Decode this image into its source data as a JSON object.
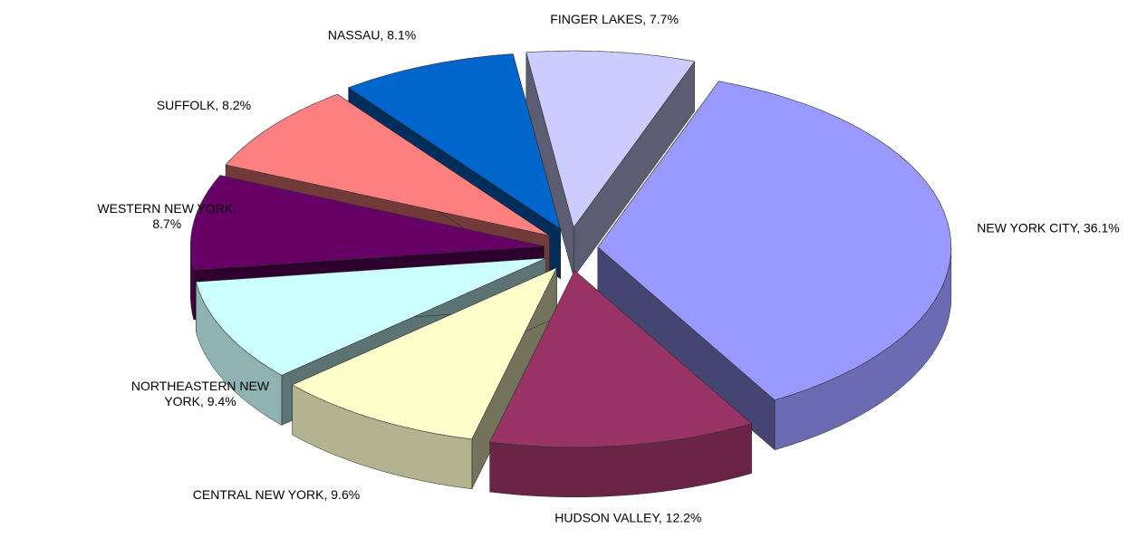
{
  "chart_data": {
    "type": "pie3d",
    "values": [
      36.1,
      12.2,
      9.6,
      9.4,
      8.7,
      8.2,
      8.1,
      7.7
    ],
    "value_labels": [
      [
        "NEW YORK CITY, 36.1%"
      ],
      [
        "HUDSON VALLEY, 12.2%"
      ],
      [
        "CENTRAL NEW YORK, 9.6%"
      ],
      [
        "NORTHEASTERN NEW",
        "YORK, 9.4%"
      ],
      [
        "WESTERN NEW YORK,",
        "8.7%"
      ],
      [
        "SUFFOLK, 8.2%"
      ],
      [
        "NASSAU, 8.1%"
      ],
      [
        "FINGER LAKES, 7.7%"
      ]
    ],
    "colors": [
      "#9999ff",
      "#993366",
      "#ffffcc",
      "#ccffff",
      "#660066",
      "#ff8080",
      "#0066cc",
      "#ccccff"
    ]
  }
}
